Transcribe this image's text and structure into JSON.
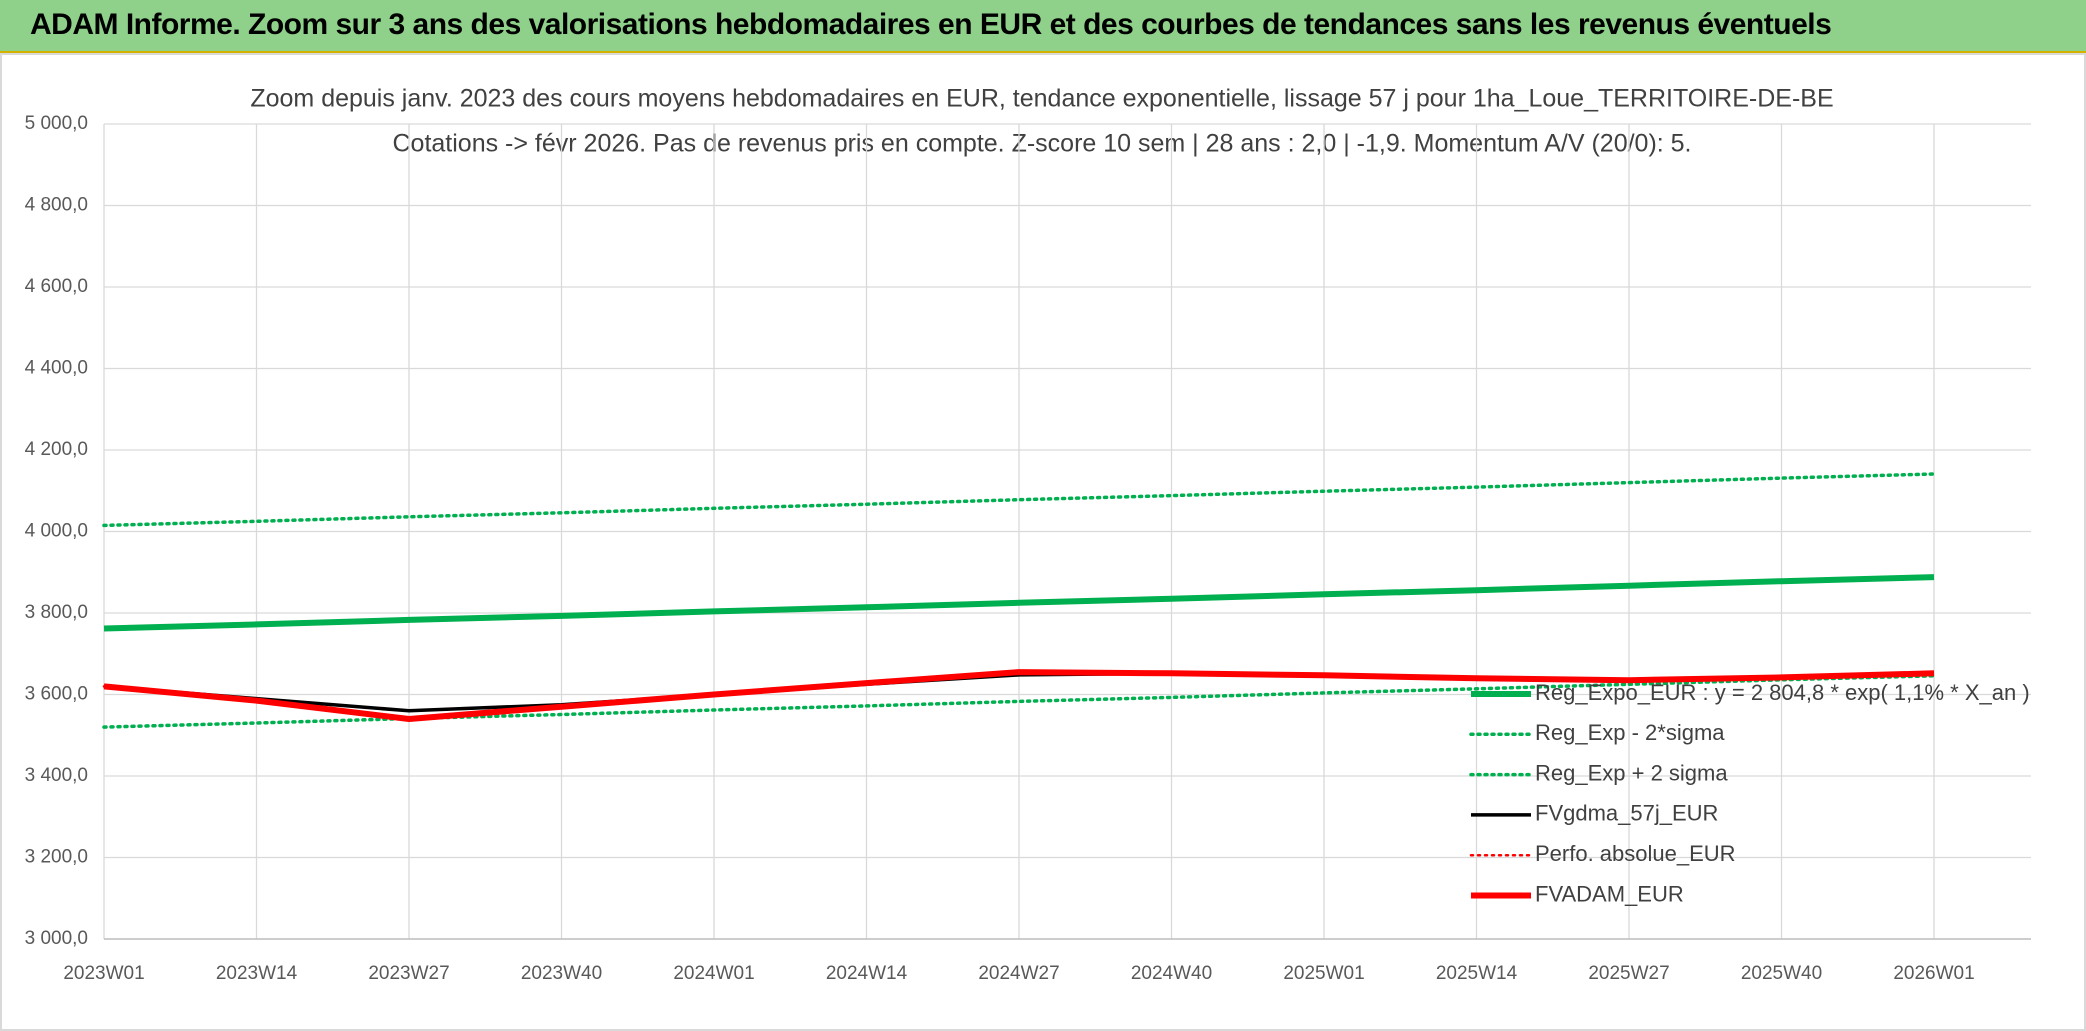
{
  "header": {
    "title": "ADAM Informe. Zoom sur 3 ans des valorisations hebdomadaires en EUR et des courbes de tendances sans les revenus éventuels"
  },
  "chart_data": {
    "type": "line",
    "title": "Zoom depuis janv. 2023 des cours moyens hebdomadaires en EUR, tendance exponentielle, lissage 57 j pour 1ha_Loue_TERRITOIRE-DE-BE",
    "subtitle": "Cotations -> févr 2026. Pas de revenus pris en compte. Z-score 10 sem | 28 ans : 2,0 | -1,9. Momentum A/V (20/0): 5.",
    "categories": [
      "2023W01",
      "2023W14",
      "2023W27",
      "2023W40",
      "2024W01",
      "2024W14",
      "2024W27",
      "2024W40",
      "2025W01",
      "2025W14",
      "2025W27",
      "2025W40",
      "2026W01"
    ],
    "ylim": [
      3000,
      5000
    ],
    "yticks": [
      {
        "value": 3000,
        "label": "3 000,0"
      },
      {
        "value": 3200,
        "label": "3 200,0"
      },
      {
        "value": 3400,
        "label": "3 400,0"
      },
      {
        "value": 3600,
        "label": "3 600,0"
      },
      {
        "value": 3800,
        "label": "3 800,0"
      },
      {
        "value": 4000,
        "label": "4 000,0"
      },
      {
        "value": 4200,
        "label": "4 200,0"
      },
      {
        "value": 4400,
        "label": "4 400,0"
      },
      {
        "value": 4600,
        "label": "4 600,0"
      },
      {
        "value": 4800,
        "label": "4 800,0"
      },
      {
        "value": 5000,
        "label": "5 000,0"
      }
    ],
    "grid": true,
    "legend": "right",
    "series": [
      {
        "name": "Reg_Expo_EUR : y = 2 804,8 * exp( 1,1% *  X_an )",
        "color": "#00b050",
        "dash": false,
        "line_width": 6,
        "values": [
          3762,
          3772,
          3783,
          3793,
          3804,
          3814,
          3825,
          3835,
          3846,
          3856,
          3867,
          3878,
          3888
        ]
      },
      {
        "name": "Reg_Exp - 2*sigma",
        "color": "#00b050",
        "dash": true,
        "line_width": 3.5,
        "values": [
          3520,
          3530,
          3541,
          3551,
          3562,
          3572,
          3583,
          3593,
          3604,
          3614,
          3625,
          3636,
          3646
        ]
      },
      {
        "name": "Reg_Exp + 2 sigma",
        "color": "#00b050",
        "dash": true,
        "line_width": 3.5,
        "values": [
          4015,
          4025,
          4036,
          4046,
          4057,
          4067,
          4078,
          4088,
          4099,
          4109,
          4120,
          4131,
          4141
        ]
      },
      {
        "name": "FVgdma_57j_EUR",
        "color": "#000000",
        "dash": false,
        "line_width": 3.5,
        "values": [
          3620,
          3590,
          3560,
          3575,
          3600,
          3625,
          3648,
          3652,
          3647,
          3640,
          3636,
          3642,
          3652
        ]
      },
      {
        "name": "Perfo. absolue_EUR",
        "color": "#ff0000",
        "dash": true,
        "line_width": 2.5,
        "values": [
          3620,
          3585,
          3540,
          3570,
          3600,
          3628,
          3655,
          3652,
          3647,
          3640,
          3635,
          3642,
          3652
        ]
      },
      {
        "name": "FVADAM_EUR",
        "color": "#ff0000",
        "dash": false,
        "line_width": 6,
        "values": [
          3620,
          3585,
          3540,
          3570,
          3600,
          3628,
          3655,
          3652,
          3647,
          3640,
          3635,
          3642,
          3652
        ]
      }
    ]
  }
}
